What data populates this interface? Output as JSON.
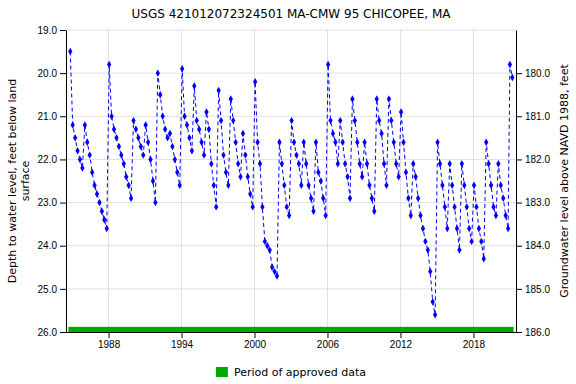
{
  "chart_data": {
    "type": "line",
    "title": "USGS 421012072324501 MA-CMW   95 CHICOPEE, MA",
    "ylabel": "Depth to water level, feet below land\nsurface",
    "y2label": "Groundwater level above NAVD 1988, feet",
    "xlim": [
      1984.5,
      2021.5
    ],
    "xticks": [
      1988,
      1994,
      2000,
      2006,
      2012,
      2018
    ],
    "ylim": [
      26.0,
      19.0
    ],
    "yticks": [
      {
        "value": 19.0,
        "label": "19.0"
      },
      {
        "value": 20.0,
        "label": "20.0"
      },
      {
        "value": 21.0,
        "label": "21.0"
      },
      {
        "value": 22.0,
        "label": "22.0"
      },
      {
        "value": 23.0,
        "label": "23.0"
      },
      {
        "value": 24.0,
        "label": "24.0"
      },
      {
        "value": 25.0,
        "label": "25.0"
      },
      {
        "value": 26.0,
        "label": "26.0"
      }
    ],
    "y2lim": [
      186.0,
      179.0
    ],
    "y2ticks": [
      {
        "value": 186.0,
        "label": "186.0"
      },
      {
        "value": 185.0,
        "label": "185.0"
      },
      {
        "value": 184.0,
        "label": "184.0"
      },
      {
        "value": 183.0,
        "label": "183.0"
      },
      {
        "value": 182.0,
        "label": "182.0"
      },
      {
        "value": 181.0,
        "label": "181.0"
      },
      {
        "value": 180.0,
        "label": "180.0"
      }
    ],
    "grid": true,
    "legend": "bottom",
    "x": [
      1984.85,
      1985.05,
      1985.25,
      1985.45,
      1985.65,
      1985.85,
      1986.05,
      1986.25,
      1986.45,
      1986.65,
      1986.85,
      1987.05,
      1987.25,
      1987.45,
      1987.65,
      1987.85,
      1988.05,
      1988.25,
      1988.45,
      1988.65,
      1988.85,
      1989.05,
      1989.25,
      1989.45,
      1989.65,
      1989.85,
      1990.05,
      1990.25,
      1990.45,
      1990.65,
      1990.85,
      1991.05,
      1991.25,
      1991.45,
      1991.65,
      1991.85,
      1992.05,
      1992.25,
      1992.45,
      1992.65,
      1992.85,
      1993.05,
      1993.25,
      1993.45,
      1993.65,
      1993.85,
      1994.05,
      1994.25,
      1994.45,
      1994.65,
      1994.85,
      1995.05,
      1995.25,
      1995.45,
      1995.65,
      1995.85,
      1996.05,
      1996.25,
      1996.45,
      1996.65,
      1996.85,
      1997.05,
      1997.25,
      1997.45,
      1997.65,
      1997.85,
      1998.05,
      1998.25,
      1998.45,
      1998.65,
      1998.85,
      1999.05,
      1999.25,
      1999.45,
      1999.65,
      1999.85,
      2000.05,
      2000.25,
      2000.45,
      2000.65,
      2000.85,
      2001.05,
      2001.25,
      2001.45,
      2001.65,
      2001.85,
      2002.05,
      2002.25,
      2002.45,
      2002.65,
      2002.85,
      2003.05,
      2003.25,
      2003.45,
      2003.65,
      2003.85,
      2004.05,
      2004.25,
      2004.45,
      2004.65,
      2004.85,
      2005.05,
      2005.25,
      2005.45,
      2005.65,
      2005.85,
      2006.05,
      2006.25,
      2006.45,
      2006.65,
      2006.85,
      2007.05,
      2007.25,
      2007.45,
      2007.65,
      2007.85,
      2008.05,
      2008.25,
      2008.45,
      2008.65,
      2008.85,
      2009.05,
      2009.25,
      2009.45,
      2009.65,
      2009.85,
      2010.05,
      2010.25,
      2010.45,
      2010.65,
      2010.85,
      2011.05,
      2011.25,
      2011.45,
      2011.65,
      2011.85,
      2012.05,
      2012.25,
      2012.45,
      2012.65,
      2012.85,
      2013.05,
      2013.25,
      2013.45,
      2013.65,
      2013.85,
      2014.05,
      2014.25,
      2014.45,
      2014.65,
      2014.85,
      2015.05,
      2015.25,
      2015.45,
      2015.65,
      2015.85,
      2016.05,
      2016.25,
      2016.45,
      2016.65,
      2016.85,
      2017.05,
      2017.25,
      2017.45,
      2017.65,
      2017.85,
      2018.05,
      2018.25,
      2018.45,
      2018.65,
      2018.85,
      2019.05,
      2019.25,
      2019.45,
      2019.65,
      2019.85,
      2020.05,
      2020.25,
      2020.45,
      2020.65,
      2020.85,
      2021.0,
      2021.2
    ],
    "series": [
      {
        "color": "#0000FF",
        "marker": "diamond",
        "line_style": "dashed",
        "values": [
          19.5,
          21.2,
          21.5,
          21.8,
          22.0,
          22.2,
          21.2,
          21.6,
          21.9,
          22.3,
          22.6,
          22.8,
          23.0,
          23.2,
          23.4,
          23.6,
          19.8,
          21.0,
          21.3,
          21.5,
          21.7,
          21.9,
          22.1,
          22.4,
          22.6,
          22.9,
          21.1,
          21.3,
          21.5,
          21.7,
          21.9,
          21.2,
          21.6,
          22.0,
          22.5,
          23.0,
          20.0,
          20.5,
          21.0,
          21.3,
          21.5,
          21.4,
          21.7,
          22.0,
          22.3,
          22.6,
          19.9,
          21.0,
          21.2,
          21.5,
          21.8,
          20.3,
          21.1,
          21.3,
          21.6,
          21.9,
          20.9,
          21.3,
          22.1,
          22.6,
          23.1,
          20.4,
          21.1,
          21.9,
          22.3,
          22.6,
          20.6,
          21.1,
          21.6,
          22.1,
          22.4,
          21.4,
          21.9,
          22.4,
          22.8,
          23.1,
          20.2,
          21.6,
          22.1,
          23.1,
          23.9,
          24.0,
          24.1,
          24.5,
          24.6,
          24.7,
          21.6,
          22.1,
          22.6,
          23.1,
          23.3,
          21.1,
          21.6,
          21.9,
          22.1,
          22.6,
          21.6,
          22.1,
          22.6,
          22.9,
          23.2,
          21.6,
          22.3,
          22.5,
          22.9,
          23.3,
          19.8,
          21.1,
          21.4,
          21.6,
          22.1,
          21.1,
          21.6,
          22.1,
          22.4,
          22.9,
          20.6,
          21.1,
          21.6,
          22.1,
          22.4,
          21.6,
          22.1,
          22.6,
          22.9,
          23.2,
          20.6,
          21.1,
          21.4,
          22.1,
          22.6,
          20.6,
          21.1,
          21.6,
          22.1,
          22.4,
          20.9,
          21.6,
          22.3,
          22.9,
          23.3,
          22.1,
          22.4,
          22.9,
          23.3,
          23.6,
          23.9,
          24.1,
          24.6,
          25.3,
          25.6,
          21.6,
          22.1,
          22.6,
          23.1,
          23.6,
          22.1,
          22.6,
          23.1,
          23.6,
          24.1,
          22.1,
          22.6,
          23.1,
          23.6,
          23.9,
          22.6,
          23.1,
          23.6,
          23.9,
          24.3,
          21.6,
          22.1,
          22.6,
          23.1,
          23.3,
          22.1,
          22.6,
          22.9,
          23.3,
          23.6,
          19.8,
          20.1
        ]
      }
    ],
    "approved_period": {
      "name": "Period of approved data",
      "color": "#00AA00",
      "start": 1984.7,
      "end": 2021.3,
      "bottom": 25.88,
      "top": 26.0
    }
  }
}
